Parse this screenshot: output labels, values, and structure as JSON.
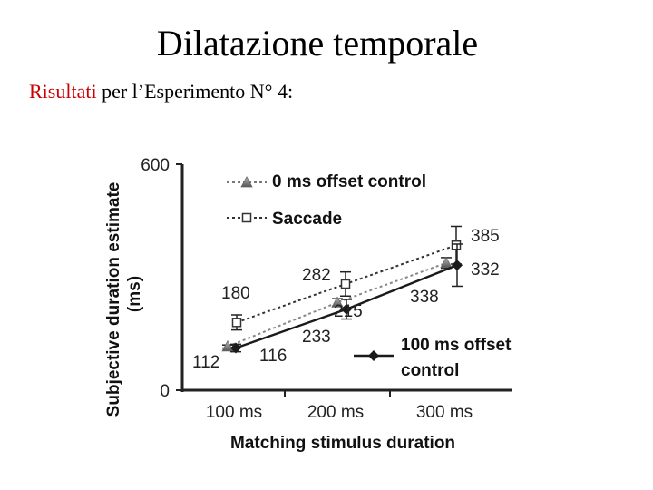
{
  "slide": {
    "title": "Dilatazione temporale",
    "subtitle_highlight": "Risultati",
    "subtitle_rest": " per l’Esperimento N° 4:"
  },
  "chart_data": {
    "type": "line",
    "xlabel": "Matching stimulus duration",
    "ylabel_line1": "Subjective duration estimate",
    "ylabel_line2": "(ms)",
    "categories": [
      "100 ms",
      "200 ms",
      "300 ms"
    ],
    "ylim": [
      0,
      600
    ],
    "yticks": [
      0,
      600
    ],
    "grid": false,
    "legend_placement": "top-left and lower-right",
    "series": [
      {
        "name": "0 ms offset control",
        "marker": "triangle",
        "line": "dotted",
        "color": "#888888",
        "values": [
          116,
          233,
          338
        ],
        "errors": [
          4,
          10,
          14
        ],
        "labels": [
          "116",
          "233",
          "338"
        ]
      },
      {
        "name": "Saccade",
        "marker": "square",
        "line": "dotted",
        "color": "#333333",
        "values": [
          180,
          282,
          385
        ],
        "errors": [
          20,
          32,
          50
        ],
        "labels": [
          "180",
          "282",
          "385"
        ]
      },
      {
        "name_line1": "100 ms offset",
        "name_line2": "control",
        "marker": "diamond",
        "line": "solid",
        "color": "#1a1a1a",
        "values": [
          112,
          215,
          332
        ],
        "errors": [
          10,
          26,
          56
        ],
        "labels": [
          "112",
          "215",
          "332"
        ]
      }
    ]
  }
}
